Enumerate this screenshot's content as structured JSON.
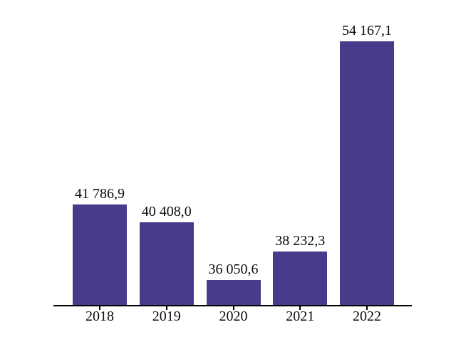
{
  "chart_data": {
    "type": "bar",
    "categories": [
      "2018",
      "2019",
      "2020",
      "2021",
      "2022"
    ],
    "values": [
      41786.9,
      40408.0,
      36050.6,
      38232.3,
      54167.1
    ],
    "value_labels": [
      "41 786,9",
      "40 408,0",
      "36 050,6",
      "38 232,3",
      "54 167,1"
    ],
    "title": "",
    "xlabel": "",
    "ylabel": "",
    "ylim": [
      34163,
      54167.1
    ],
    "grid": false,
    "legend": "none",
    "y_axis_shown": false,
    "bar_color": "#483B8C",
    "axis_color": "#000000",
    "text_color": "#0a0a0a",
    "background_color": "#ffffff"
  }
}
